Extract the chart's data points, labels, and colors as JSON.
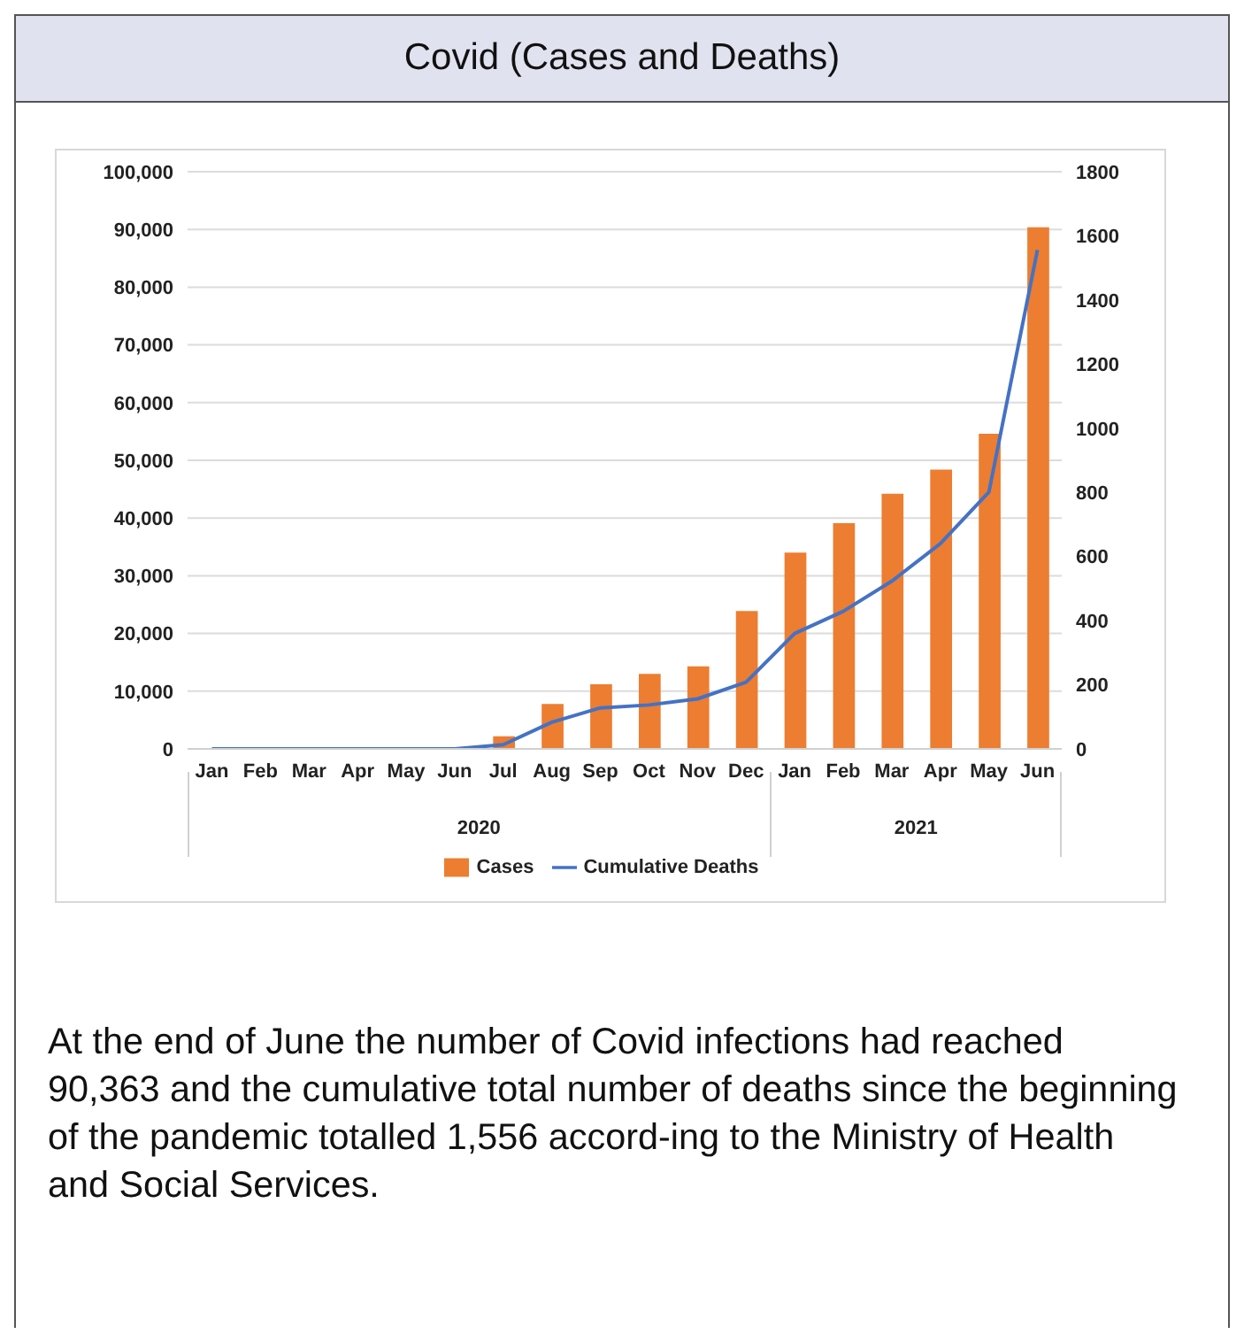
{
  "chart_data": {
    "type": "bar",
    "title": "Covid (Cases and Deaths)",
    "categories": [
      "Jan",
      "Feb",
      "Mar",
      "Apr",
      "May",
      "Jun",
      "Jul",
      "Aug",
      "Sep",
      "Oct",
      "Nov",
      "Dec",
      "Jan",
      "Feb",
      "Mar",
      "Apr",
      "May",
      "Jun"
    ],
    "series": [
      {
        "name": "Cases",
        "color": "#ed7d31",
        "values": [
          0,
          0,
          0,
          0,
          0,
          0,
          2200,
          7800,
          11200,
          13000,
          14300,
          23900,
          34000,
          39100,
          44200,
          48400,
          54600,
          90363
        ]
      },
      {
        "name": "Cumulative Deaths",
        "type": "line",
        "axis": "y2",
        "color": "#4472c4",
        "values": [
          0,
          0,
          0,
          0,
          0,
          0,
          13,
          83,
          128,
          137,
          156,
          208,
          360,
          429,
          523,
          640,
          801,
          1556
        ]
      }
    ],
    "ylim": [
      0,
      100000
    ],
    "yticks": [
      {
        "value": 0,
        "label": "0"
      },
      {
        "value": 10000,
        "label": "10,000"
      },
      {
        "value": 20000,
        "label": "20,000"
      },
      {
        "value": 30000,
        "label": "30,000"
      },
      {
        "value": 40000,
        "label": "40,000"
      },
      {
        "value": 50000,
        "label": "50,000"
      },
      {
        "value": 60000,
        "label": "60,000"
      },
      {
        "value": 70000,
        "label": "70,000"
      },
      {
        "value": 80000,
        "label": "80,000"
      },
      {
        "value": 90000,
        "label": "90,000"
      },
      {
        "value": 100000,
        "label": "100,000"
      }
    ],
    "y2lim": [
      0,
      1800
    ],
    "y2ticks": [
      0,
      200,
      400,
      600,
      800,
      1000,
      1200,
      1400,
      1600,
      1800
    ],
    "grid": "y",
    "legend": "bottom",
    "marker": "none",
    "annotations": [
      "2020",
      "2021",
      "At the end of June the number of Covid infections had reached 90,363 and the cumulative total number of deaths since the beginning of the pandemic totalled 1,556 accord-ing to the Ministry of Health and Social Services."
    ]
  }
}
